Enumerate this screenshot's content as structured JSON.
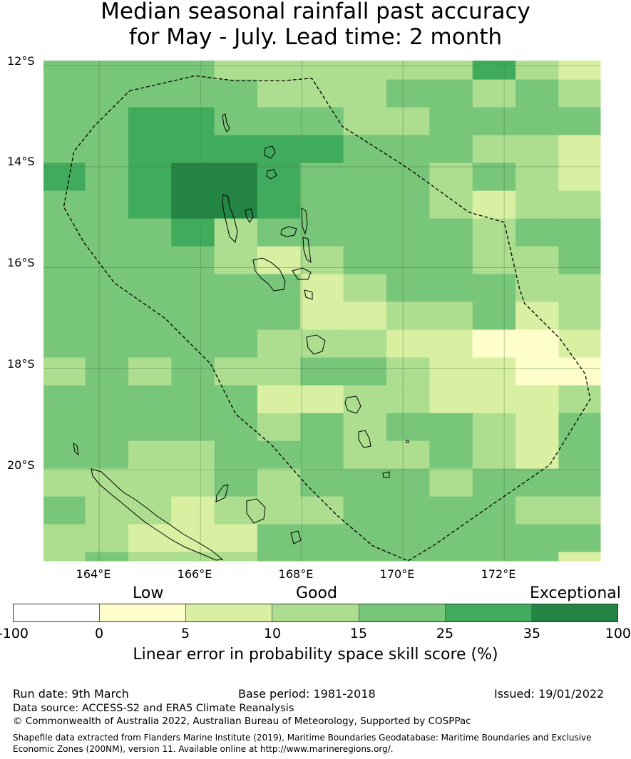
{
  "title_line1": "Median seasonal rainfall past accuracy",
  "title_line2": "for May - July. Lead time: 2 month",
  "map": {
    "lat_labels": [
      "12°S",
      "14°S",
      "16°S",
      "18°S",
      "20°S"
    ],
    "lon_labels": [
      "164°E",
      "166°E",
      "168°E",
      "170°E",
      "172°E"
    ],
    "lon_range": [
      162.9,
      173.9
    ],
    "lat_range": [
      -11.9,
      -21.8
    ],
    "grid_lons": [
      163.3,
      164.15,
      165,
      165.85,
      166.7,
      167.55,
      168.4,
      169.25,
      170.1,
      170.95,
      171.8,
      172.65,
      173.5
    ],
    "grid_lats": [
      -12.0,
      -12.55,
      -13.1,
      -13.65,
      -14.2,
      -14.75,
      -15.3,
      -15.85,
      -16.4,
      -16.95,
      -17.5,
      -18.05,
      -18.6,
      -19.15,
      -19.7,
      -20.25,
      -20.8,
      -21.35,
      -21.9
    ],
    "skill_class_grid": [
      [
        4,
        4,
        4,
        4,
        3,
        3,
        3,
        3,
        3,
        3,
        5,
        3,
        2
      ],
      [
        4,
        4,
        4,
        4,
        4,
        3,
        3,
        3,
        4,
        4,
        3,
        4,
        3
      ],
      [
        4,
        4,
        5,
        5,
        4,
        4,
        4,
        3,
        3,
        4,
        4,
        4,
        4
      ],
      [
        4,
        4,
        5,
        5,
        5,
        5,
        5,
        4,
        4,
        4,
        3,
        3,
        2
      ],
      [
        5,
        4,
        5,
        6,
        6,
        5,
        4,
        4,
        4,
        3,
        4,
        3,
        2
      ],
      [
        4,
        4,
        5,
        6,
        6,
        5,
        4,
        4,
        4,
        3,
        2,
        3,
        3
      ],
      [
        4,
        4,
        4,
        5,
        3,
        4,
        4,
        4,
        4,
        4,
        3,
        4,
        4
      ],
      [
        4,
        4,
        4,
        4,
        3,
        2,
        3,
        4,
        4,
        4,
        3,
        3,
        4
      ],
      [
        4,
        4,
        4,
        4,
        4,
        4,
        2,
        3,
        4,
        4,
        4,
        3,
        3
      ],
      [
        4,
        4,
        4,
        4,
        4,
        4,
        2,
        2,
        3,
        3,
        4,
        2,
        3
      ],
      [
        4,
        4,
        4,
        4,
        4,
        3,
        3,
        3,
        2,
        2,
        1,
        1,
        2
      ],
      [
        3,
        4,
        3,
        4,
        3,
        3,
        4,
        4,
        3,
        2,
        2,
        1,
        1
      ],
      [
        4,
        4,
        4,
        4,
        4,
        2,
        2,
        3,
        3,
        2,
        2,
        2,
        3
      ],
      [
        4,
        4,
        4,
        4,
        4,
        3,
        4,
        3,
        4,
        4,
        3,
        2,
        4
      ],
      [
        4,
        4,
        3,
        3,
        4,
        4,
        4,
        3,
        3,
        4,
        3,
        2,
        4
      ],
      [
        3,
        3,
        3,
        3,
        4,
        3,
        4,
        4,
        4,
        3,
        4,
        4,
        4
      ],
      [
        4,
        3,
        3,
        2,
        3,
        3,
        3,
        4,
        4,
        4,
        4,
        3,
        3
      ],
      [
        3,
        3,
        2,
        2,
        2,
        4,
        4,
        4,
        4,
        4,
        4,
        4,
        4
      ],
      [
        3,
        4,
        3,
        3,
        3,
        4,
        4,
        4,
        4,
        4,
        4,
        4,
        2
      ]
    ],
    "eez_boundary": [
      [
        164.6,
        -12.5
      ],
      [
        165.9,
        -12.2
      ],
      [
        166.7,
        -12.3
      ],
      [
        167.6,
        -12.3
      ],
      [
        168.2,
        -12.25
      ],
      [
        168.8,
        -13.2
      ],
      [
        169.9,
        -13.9
      ],
      [
        170.2,
        -14.1
      ],
      [
        171.3,
        -14.9
      ],
      [
        172.0,
        -15.1
      ],
      [
        172.3,
        -16.4
      ],
      [
        172.4,
        -16.7
      ],
      [
        173.1,
        -17.4
      ],
      [
        173.6,
        -18.1
      ],
      [
        173.7,
        -18.6
      ],
      [
        172.9,
        -19.9
      ],
      [
        171.6,
        -20.8
      ],
      [
        170.6,
        -21.5
      ],
      [
        170.1,
        -21.8
      ],
      [
        169.4,
        -21.5
      ],
      [
        168.7,
        -20.9
      ],
      [
        168.1,
        -20.3
      ],
      [
        167.4,
        -19.5
      ],
      [
        166.7,
        -18.9
      ],
      [
        166.2,
        -17.9
      ],
      [
        165.3,
        -17.0
      ],
      [
        164.3,
        -16.3
      ],
      [
        163.7,
        -15.5
      ],
      [
        163.3,
        -14.8
      ],
      [
        163.5,
        -13.7
      ],
      [
        163.9,
        -13.2
      ],
      [
        164.6,
        -12.5
      ]
    ],
    "grid_color": "#4a7a4a",
    "boundary_color": "#000000"
  },
  "legend": {
    "categories": [
      "Low",
      "Good",
      "Exceptional"
    ],
    "colors": [
      "#ffffff",
      "#ffffcc",
      "#d9f0a3",
      "#addd8e",
      "#78c679",
      "#41ab5d",
      "#238443"
    ],
    "ticks": [
      "-100",
      "0",
      "5",
      "10",
      "15",
      "25",
      "35",
      "100"
    ],
    "label": "Linear error in probability space skill score (%)"
  },
  "footer": {
    "run_date": "Run date: 9th March",
    "base_period": "Base period: 1981-2018",
    "issued": "Issued: 19/01/2022",
    "data_source": "Data source: ACCESS-S2 and ERA5 Climate Reanalysis",
    "copyright": "© Commonwealth of Australia 2022, Australian Bureau of Meteorology, Supported by COSPPac",
    "shapefile_line1": "Shapefile data extracted from Flanders Marine Institute (2019), Maritime Boundaries Geodatabase: Maritime Boundaries and Exclusive",
    "shapefile_line2": "Economic Zones (200NM), version 11. Available online at http://www.marineregions.org/."
  }
}
